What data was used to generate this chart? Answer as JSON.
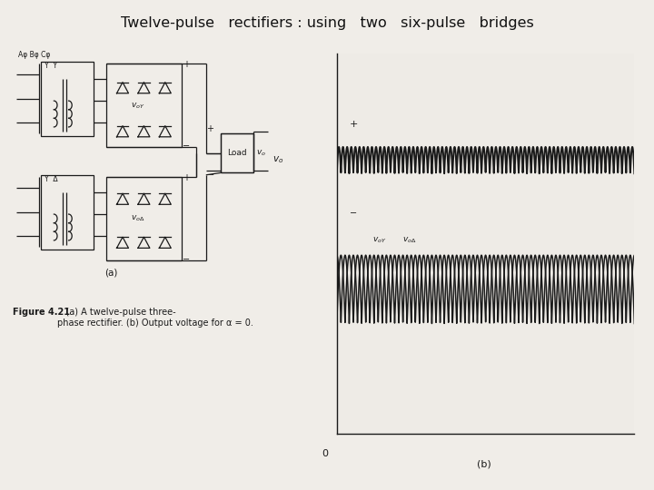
{
  "bg_color": "#f0ede8",
  "line_color": "#1a1a1a",
  "grid_color": "#bbbbbb",
  "title": "Twelve-pulse   rectifiers : using   two   six-pulse   bridges",
  "fig_caption_bold": "Figure 4.21",
  "fig_caption_normal": "   (a) A twelve-pulse three-\nphase rectifier. (b) Output voltage for α = 0.",
  "label_a": "(a)",
  "label_b": "(b)",
  "vo_dc": 0.72,
  "voy_dc": 0.38,
  "vo_ripple_amp": 0.035,
  "voy_ripple_amp": 0.09,
  "vo_freq_mult": 12,
  "voy_freq_mult": 6,
  "num_periods": 2,
  "plot_bg": "#eeebe6",
  "wave_lw": 1.4,
  "wave_lw2": 1.1
}
